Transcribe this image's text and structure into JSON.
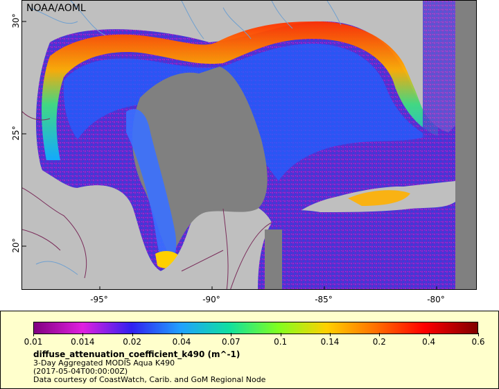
{
  "map": {
    "credit": "NOAA/AOML",
    "lat_ticks": [
      "30°",
      "25°",
      "20°"
    ],
    "lon_ticks": [
      "-95°",
      "-90°",
      "-85°",
      "-80°"
    ],
    "colors": {
      "land": "#bfbfbf",
      "nodata": "#808080",
      "border": "#7a2c5a",
      "river": "#6fa0d0"
    }
  },
  "legend": {
    "ticks": [
      "0.01",
      "0.014",
      "0.02",
      "0.04",
      "0.07",
      "0.1",
      "0.14",
      "0.2",
      "0.4",
      "0.6"
    ],
    "title": "diffuse_attenuation_coefficient_k490 (m^-1)",
    "line1": "3-Day Aggregated MODIS Aqua K490",
    "line2": "(2017-05-04T00:00:00Z)",
    "line3": "Data courtesy of CoastWatch, Carib. and GoM Regional Node",
    "background": "#ffffcc"
  }
}
